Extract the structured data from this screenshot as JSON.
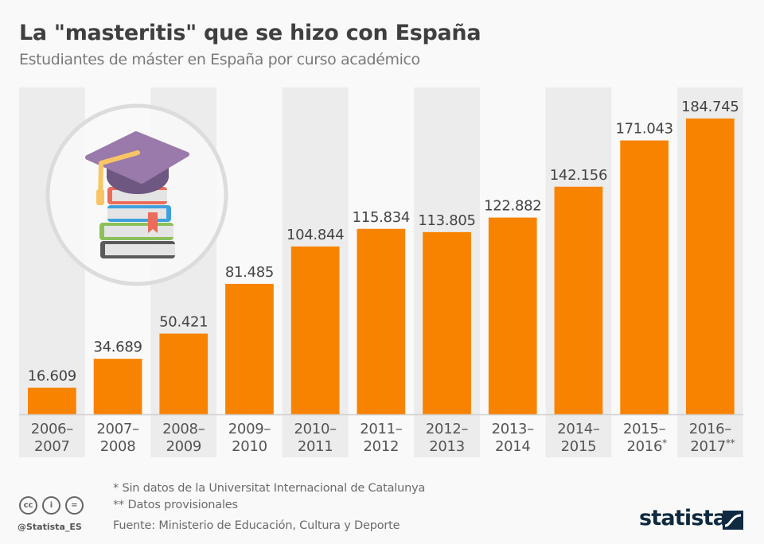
{
  "header": {
    "title": "La \"masteritis\" que se hizo con España",
    "subtitle": "Estudiantes de máster en España por curso académico"
  },
  "chart_data": {
    "type": "bar",
    "title": "La \"masteritis\" que se hizo con España",
    "subtitle": "Estudiantes de máster en España por curso académico",
    "xlabel": "",
    "ylabel": "",
    "categories": [
      [
        "2006–",
        "2007"
      ],
      [
        "2007–",
        "2008"
      ],
      [
        "2008–",
        "2009"
      ],
      [
        "2009–",
        "2010"
      ],
      [
        "2010–",
        "2011"
      ],
      [
        "2011–",
        "2012"
      ],
      [
        "2012–",
        "2013"
      ],
      [
        "2013–",
        "2014"
      ],
      [
        "2014–",
        "2015"
      ],
      [
        "2015–",
        "2016*"
      ],
      [
        "2016–",
        "2017**"
      ]
    ],
    "values": [
      16609,
      34689,
      50421,
      81485,
      104844,
      115834,
      113805,
      122882,
      142156,
      171043,
      184745
    ],
    "labels": [
      "16.609",
      "34.689",
      "50.421",
      "81.485",
      "104.844",
      "115.834",
      "113.805",
      "122.882",
      "142.156",
      "171.043",
      "184.745"
    ],
    "ylim": [
      0,
      184745
    ],
    "grid": false,
    "bar_color": "#f78300",
    "band_color": "#ececec"
  },
  "footnotes": {
    "note1": "*   Sin datos de la Universitat Internacional de Catalunya",
    "note2": "** Datos provisionales",
    "source": "Fuente: Ministerio de Educación, Cultura y Deporte"
  },
  "license": {
    "icons": [
      "cc-icon",
      "by-icon",
      "nd-icon"
    ],
    "cc_text": "cc",
    "by_text": "i",
    "nd_text": "="
  },
  "handle": "@Statista_ES",
  "brand": "statista"
}
